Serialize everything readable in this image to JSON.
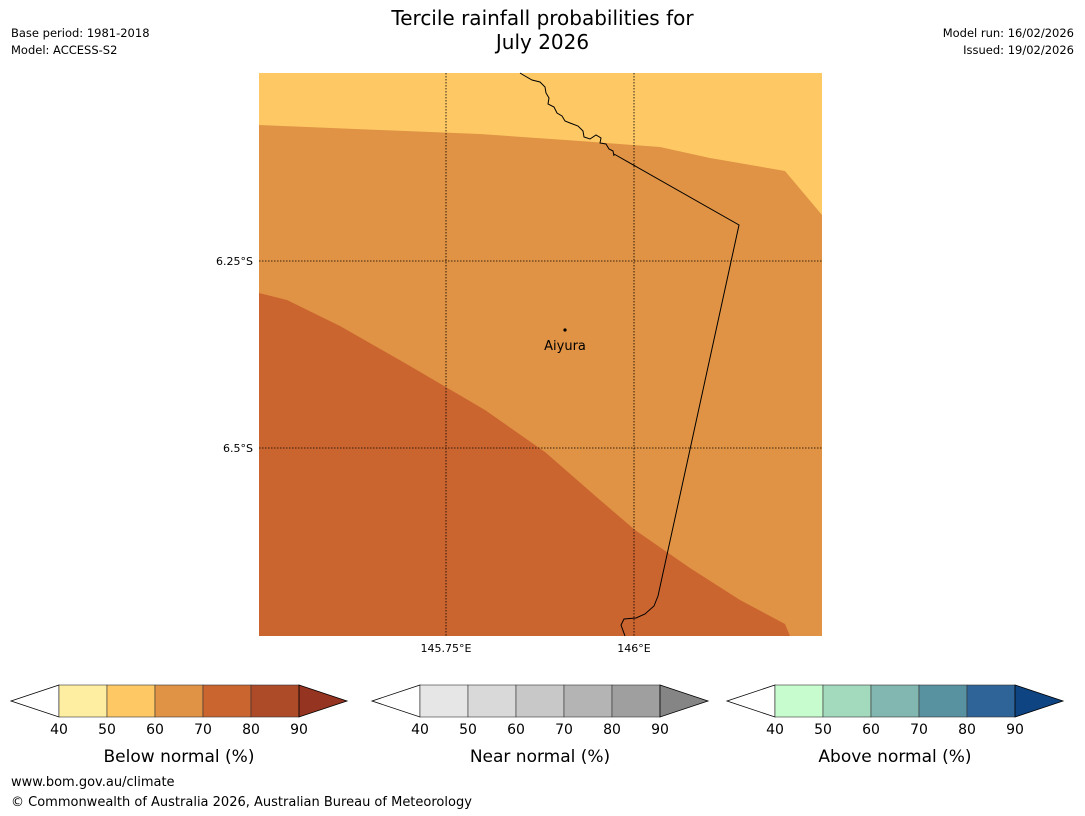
{
  "title_line1": "Tercile rainfall probabilities for",
  "title_line2": "July 2026",
  "base_period": "Base period: 1981-2018",
  "model": "Model: ACCESS-S2",
  "model_run": "Model run: 16/02/2026",
  "issued": "Issued: 19/02/2026",
  "map": {
    "lat_labels": [
      "6.25°S",
      "6.5°S"
    ],
    "lon_labels": [
      "145.75°E",
      "146°E"
    ],
    "location": {
      "name": "Aiyura"
    },
    "colors": {
      "light": "#fec965",
      "mid": "#e09344",
      "dark": "#cb6530"
    }
  },
  "legends": [
    {
      "label": "Below normal (%)",
      "ticks": [
        "40",
        "50",
        "60",
        "70",
        "80",
        "90"
      ],
      "colors": [
        "#feeea1",
        "#fec965",
        "#e09344",
        "#cb6530",
        "#ad4a28",
        "#953420"
      ]
    },
    {
      "label": "Near normal (%)",
      "ticks": [
        "40",
        "50",
        "60",
        "70",
        "80",
        "90"
      ],
      "colors": [
        "#e6e6e6",
        "#d9d9d9",
        "#c8c8c8",
        "#b4b4b4",
        "#9f9f9f",
        "#858585"
      ]
    },
    {
      "label": "Above normal (%)",
      "ticks": [
        "40",
        "50",
        "60",
        "70",
        "80",
        "90"
      ],
      "colors": [
        "#c7fcce",
        "#a3d9bd",
        "#82b6b0",
        "#5891a0",
        "#2f6498",
        "#0f4482"
      ]
    }
  ],
  "footer_url": "www.bom.gov.au/climate",
  "footer_copyright": "© Commonwealth of Australia 2026, Australian Bureau of Meteorology"
}
